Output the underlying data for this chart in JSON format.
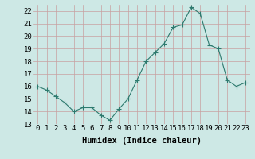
{
  "x": [
    0,
    1,
    2,
    3,
    4,
    5,
    6,
    7,
    8,
    9,
    10,
    11,
    12,
    13,
    14,
    15,
    16,
    17,
    18,
    19,
    20,
    21,
    22,
    23
  ],
  "y": [
    16.0,
    15.7,
    15.2,
    14.7,
    14.0,
    14.3,
    14.3,
    13.7,
    13.3,
    14.2,
    15.0,
    16.5,
    18.0,
    18.7,
    19.4,
    20.7,
    20.9,
    22.3,
    21.8,
    19.3,
    19.0,
    16.5,
    16.0,
    16.3
  ],
  "line_color": "#2d7a6e",
  "marker": "+",
  "marker_size": 4,
  "bg_color": "#cde8e5",
  "grid_color": "#b8d8d5",
  "xlabel": "Humidex (Indice chaleur)",
  "ylim": [
    13,
    22.5
  ],
  "xlim": [
    -0.5,
    23.5
  ],
  "yticks": [
    13,
    14,
    15,
    16,
    17,
    18,
    19,
    20,
    21,
    22
  ],
  "xticks": [
    0,
    1,
    2,
    3,
    4,
    5,
    6,
    7,
    8,
    9,
    10,
    11,
    12,
    13,
    14,
    15,
    16,
    17,
    18,
    19,
    20,
    21,
    22,
    23
  ],
  "xtick_labels": [
    "0",
    "1",
    "2",
    "3",
    "4",
    "5",
    "6",
    "7",
    "8",
    "9",
    "10",
    "11",
    "12",
    "13",
    "14",
    "15",
    "16",
    "17",
    "18",
    "19",
    "20",
    "21",
    "22",
    "23"
  ],
  "xlabel_fontsize": 7.5,
  "tick_fontsize": 6.5
}
